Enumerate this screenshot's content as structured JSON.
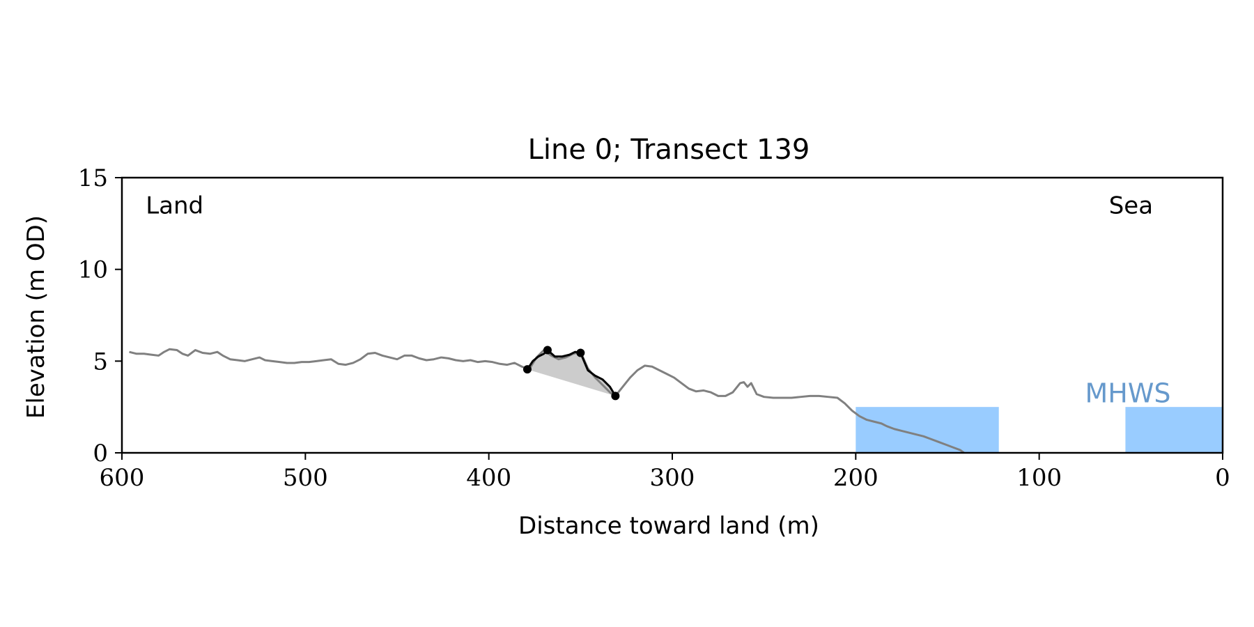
{
  "chart_data": {
    "type": "line",
    "title": "Line 0; Transect 139",
    "xlabel": "Distance toward land (m)",
    "ylabel": "Elevation (m OD)",
    "xlim": [
      600,
      0
    ],
    "ylim": [
      0,
      15
    ],
    "x_reversed": true,
    "x_ticks": [
      600,
      500,
      400,
      300,
      200,
      100,
      0
    ],
    "y_ticks": [
      0,
      5,
      10,
      15
    ],
    "grid": false,
    "annotations": [
      {
        "text": "Land",
        "x": 587,
        "y": 13.5
      },
      {
        "text": "Sea",
        "x": 62,
        "y": 13.5
      },
      {
        "text": "MHWS",
        "x": 75,
        "y": 3.2,
        "color": "#6699cc"
      }
    ],
    "series": [
      {
        "role": "profile",
        "color": "#808080",
        "x": [
          596,
          592,
          588,
          584,
          580,
          577,
          574,
          570,
          567,
          564,
          560,
          556,
          552,
          548,
          545,
          541,
          537,
          533,
          529,
          525,
          522,
          518,
          514,
          510,
          506,
          502,
          498,
          494,
          490,
          486,
          482,
          478,
          474,
          470,
          466,
          462,
          458,
          454,
          450,
          446,
          442,
          438,
          434,
          430,
          426,
          422,
          418,
          414,
          410,
          406,
          402,
          398,
          394,
          390,
          386,
          382,
          378,
          374,
          370,
          366,
          362,
          358,
          354,
          350,
          346,
          342,
          338,
          334,
          331,
          327,
          323,
          319,
          315,
          311,
          307,
          303,
          299,
          295,
          291,
          287,
          283,
          279,
          275,
          271,
          267,
          263,
          261,
          259,
          257,
          254,
          250,
          245,
          240,
          235,
          230,
          225,
          220,
          215,
          210,
          206,
          202,
          198,
          194,
          190,
          186,
          183,
          179,
          175,
          171,
          167,
          163,
          159,
          155,
          151,
          147,
          143,
          141
        ],
        "y": [
          5.5,
          5.4,
          5.4,
          5.35,
          5.3,
          5.5,
          5.65,
          5.6,
          5.4,
          5.3,
          5.6,
          5.45,
          5.4,
          5.5,
          5.3,
          5.1,
          5.05,
          5.0,
          5.1,
          5.2,
          5.05,
          5.0,
          4.95,
          4.9,
          4.9,
          4.95,
          4.95,
          5.0,
          5.05,
          5.1,
          4.85,
          4.8,
          4.9,
          5.1,
          5.4,
          5.45,
          5.3,
          5.2,
          5.1,
          5.3,
          5.3,
          5.15,
          5.05,
          5.1,
          5.2,
          5.15,
          5.05,
          5.0,
          5.05,
          4.95,
          5.0,
          4.95,
          4.85,
          4.8,
          4.9,
          4.7,
          4.55,
          5.2,
          5.6,
          5.3,
          5.1,
          5.2,
          5.4,
          5.5,
          4.6,
          4.1,
          3.7,
          3.3,
          3.1,
          3.6,
          4.1,
          4.5,
          4.75,
          4.7,
          4.5,
          4.3,
          4.1,
          3.8,
          3.5,
          3.35,
          3.4,
          3.3,
          3.1,
          3.1,
          3.3,
          3.8,
          3.85,
          3.6,
          3.8,
          3.2,
          3.05,
          3.0,
          3.0,
          3.0,
          3.05,
          3.1,
          3.1,
          3.05,
          3.0,
          2.7,
          2.3,
          2.0,
          1.8,
          1.7,
          1.6,
          1.45,
          1.3,
          1.2,
          1.1,
          1.0,
          0.9,
          0.75,
          0.6,
          0.45,
          0.3,
          0.15,
          0.0
        ]
      },
      {
        "role": "feature",
        "color": "#000000",
        "x": [
          379,
          376,
          373,
          370,
          368,
          364,
          360,
          356,
          353,
          350,
          346,
          342,
          338,
          334,
          331
        ],
        "y": [
          4.55,
          5.0,
          5.25,
          5.4,
          5.6,
          5.25,
          5.25,
          5.35,
          5.5,
          5.45,
          4.5,
          4.2,
          4.0,
          3.6,
          3.1
        ]
      }
    ],
    "markers": [
      {
        "x": 379,
        "y": 4.55
      },
      {
        "x": 368,
        "y": 5.6
      },
      {
        "x": 350,
        "y": 5.45
      },
      {
        "x": 331,
        "y": 3.1
      }
    ],
    "shaded_feature": {
      "color": "#cccccc",
      "from_x": 379,
      "to_x": 331
    },
    "water_regions": [
      {
        "x_start": 200,
        "x_end": 122,
        "top": 2.5,
        "color": "#99ccff"
      },
      {
        "x_start": 53,
        "x_end": 0,
        "top": 2.5,
        "color": "#99ccff"
      }
    ]
  }
}
